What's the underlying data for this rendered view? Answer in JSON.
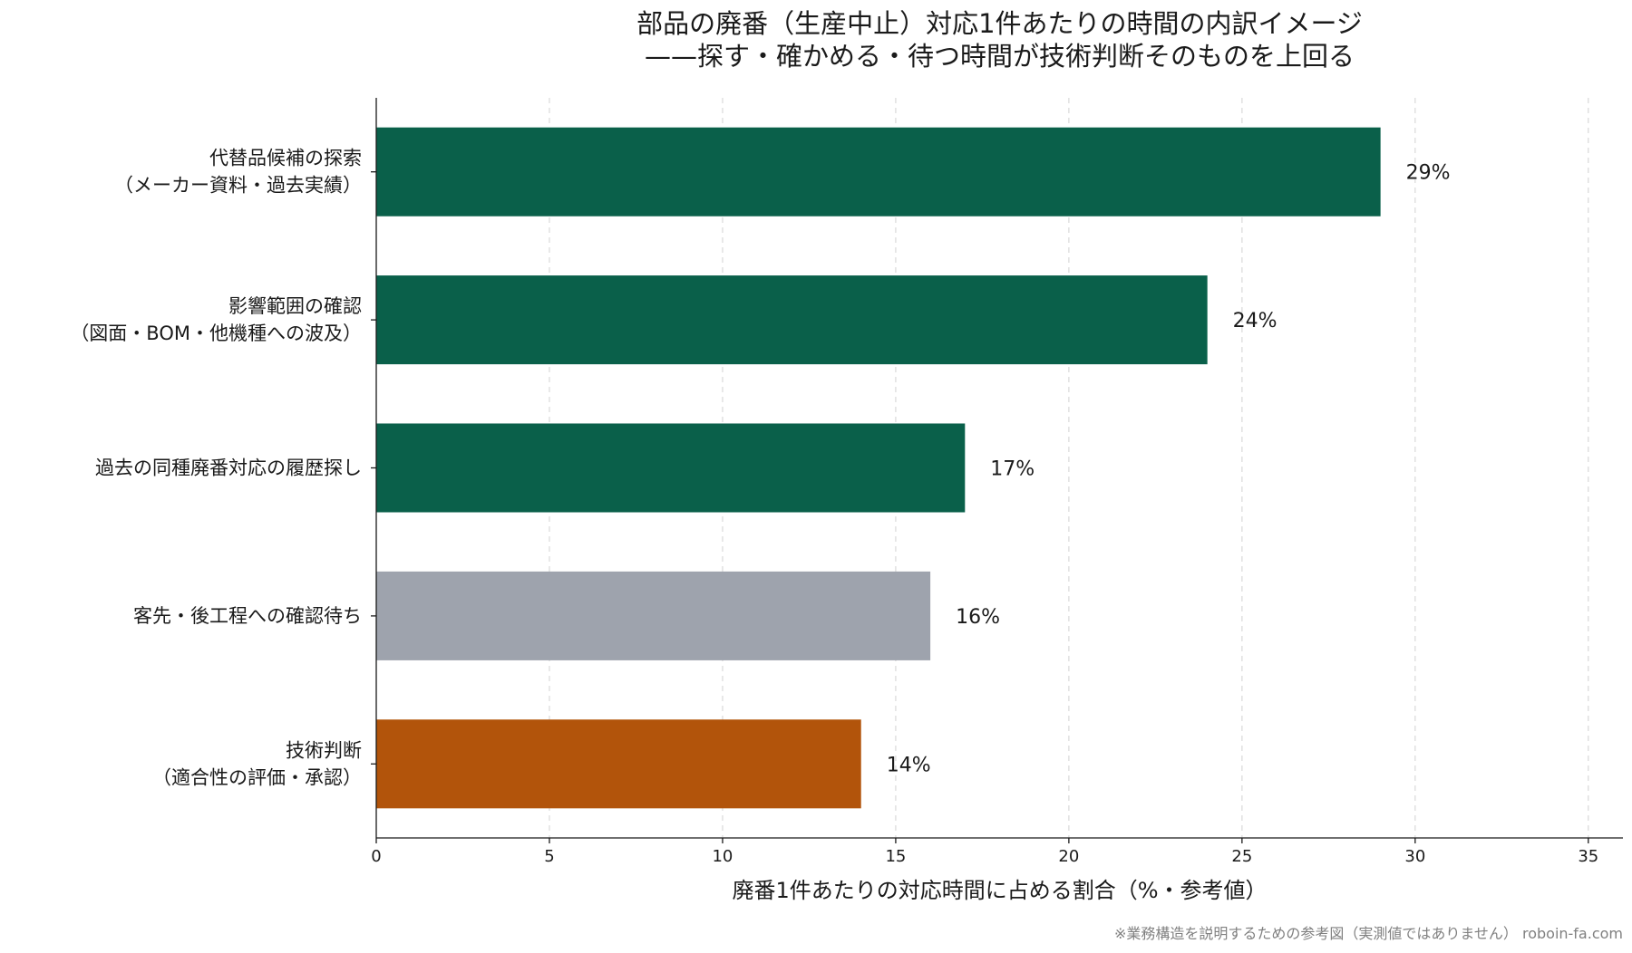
{
  "chart_data": {
    "type": "bar",
    "orientation": "horizontal",
    "title": [
      "部品の廃番（生産中止）対応1件あたりの時間の内訳イメージ",
      "——探す・確かめる・待つ時間が技術判断そのものを上回る"
    ],
    "xlabel": "廃番1件あたりの対応時間に占める割合（%・参考値）",
    "ylabel": "",
    "xlim": [
      0,
      36
    ],
    "xticks": [
      0,
      5,
      10,
      15,
      20,
      25,
      30,
      35
    ],
    "grid": true,
    "categories": [
      [
        "代替品候補の探索",
        "（メーカー資料・過去実績）"
      ],
      [
        "影響範囲の確認",
        "（図面・BOM・他機種への波及）"
      ],
      [
        "過去の同種廃番対応の履歴探し"
      ],
      [
        "客先・後工程への確認待ち"
      ],
      [
        "技術判断",
        "（適合性の評価・承認）"
      ]
    ],
    "values": [
      29,
      24,
      17,
      16,
      14
    ],
    "value_labels": [
      "29%",
      "24%",
      "17%",
      "16%",
      "14%"
    ],
    "colors": [
      "#0a604a",
      "#0a604a",
      "#0a604a",
      "#9ea3ad",
      "#b2540b"
    ],
    "footnote": "※業務構造を説明するための参考図（実測値ではありません） roboin-fa.com"
  }
}
